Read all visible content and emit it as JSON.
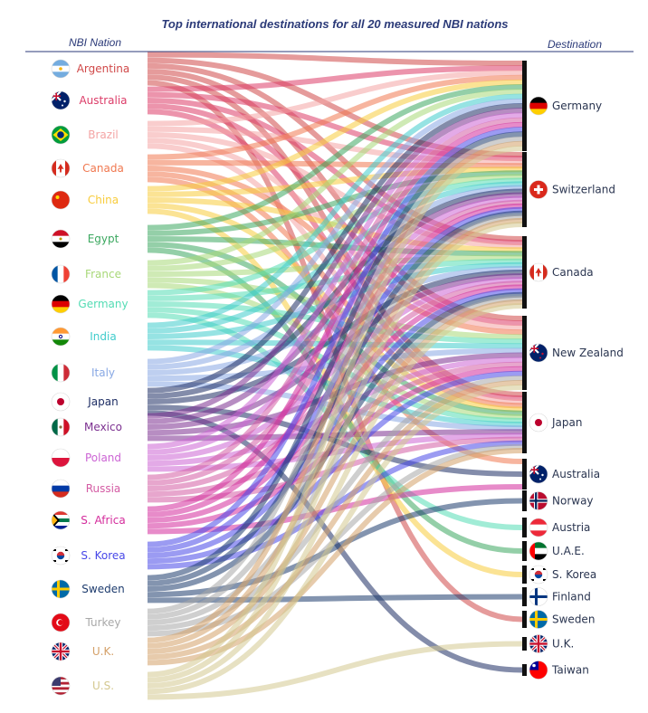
{
  "chart_data": {
    "type": "sankey",
    "title": "Top international destinations for all 20 measured NBI nations",
    "left_header": "NBI Nation",
    "right_header": "Destination",
    "sources": [
      {
        "name": "Argentina",
        "color": "#d04848",
        "flag": "argentina-flag"
      },
      {
        "name": "Australia",
        "color": "#dc3c68",
        "flag": "australia-flag"
      },
      {
        "name": "Brazil",
        "color": "#f4a4a4",
        "flag": "brazil-flag"
      },
      {
        "name": "Canada",
        "color": "#f07850",
        "flag": "canada-flag"
      },
      {
        "name": "China",
        "color": "#f8cc3c",
        "flag": "china-flag"
      },
      {
        "name": "Egypt",
        "color": "#3ca860",
        "flag": "egypt-flag"
      },
      {
        "name": "France",
        "color": "#a8d878",
        "flag": "france-flag"
      },
      {
        "name": "Germany",
        "color": "#54dcb4",
        "flag": "germany-flag"
      },
      {
        "name": "India",
        "color": "#40cccc",
        "flag": "india-flag"
      },
      {
        "name": "Italy",
        "color": "#88a8e4",
        "flag": "italy-flag"
      },
      {
        "name": "Japan",
        "color": "#1e2e64",
        "flag": "japan-flag"
      },
      {
        "name": "Mexico",
        "color": "#7c3090",
        "flag": "mexico-flag"
      },
      {
        "name": "Poland",
        "color": "#cc64d4",
        "flag": "poland-flag"
      },
      {
        "name": "Russia",
        "color": "#d45ca4",
        "flag": "russia-flag"
      },
      {
        "name": "S. Africa",
        "color": "#d42c9c",
        "flag": "s-africa-flag"
      },
      {
        "name": "S. Korea",
        "color": "#4848e8",
        "flag": "s-korea-flag"
      },
      {
        "name": "Sweden",
        "color": "#1e3c6e",
        "flag": "sweden-flag"
      },
      {
        "name": "Turkey",
        "color": "#a8a8a8",
        "flag": "turkey-flag"
      },
      {
        "name": "U.K.",
        "color": "#d4a068",
        "flag": "uk-flag"
      },
      {
        "name": "U.S.",
        "color": "#d4c890",
        "flag": "us-flag"
      }
    ],
    "destinations": [
      {
        "name": "Germany",
        "flag": "germany-flag"
      },
      {
        "name": "Switzerland",
        "flag": "switzerland-flag"
      },
      {
        "name": "Canada",
        "flag": "canada-flag"
      },
      {
        "name": "New Zealand",
        "flag": "new-zealand-flag"
      },
      {
        "name": "Japan",
        "flag": "japan-flag"
      },
      {
        "name": "Australia",
        "flag": "australia-flag"
      },
      {
        "name": "Norway",
        "flag": "norway-flag"
      },
      {
        "name": "Austria",
        "flag": "austria-flag"
      },
      {
        "name": "U.A.E.",
        "flag": "uae-flag"
      },
      {
        "name": "S. Korea",
        "flag": "s-korea-flag"
      },
      {
        "name": "Finland",
        "flag": "finland-flag"
      },
      {
        "name": "Sweden",
        "flag": "sweden-flag"
      },
      {
        "name": "U.K.",
        "flag": "uk-flag"
      },
      {
        "name": "Taiwan",
        "flag": "taiwan-flag"
      }
    ],
    "flows": [
      {
        "from": "Argentina",
        "to": [
          "Germany",
          "Switzerland",
          "Canada",
          "New Zealand",
          "Japan",
          "Sweden"
        ]
      },
      {
        "from": "Australia",
        "to": [
          "Germany",
          "Switzerland",
          "Canada",
          "New Zealand",
          "Japan"
        ]
      },
      {
        "from": "Brazil",
        "to": [
          "Germany",
          "Switzerland",
          "Canada",
          "New Zealand",
          "Japan"
        ]
      },
      {
        "from": "Canada",
        "to": [
          "Germany",
          "Switzerland",
          "New Zealand",
          "Japan",
          "Australia"
        ]
      },
      {
        "from": "China",
        "to": [
          "Germany",
          "Switzerland",
          "Canada",
          "Japan",
          "S. Korea"
        ]
      },
      {
        "from": "Egypt",
        "to": [
          "Germany",
          "Switzerland",
          "Canada",
          "Japan",
          "U.A.E."
        ]
      },
      {
        "from": "France",
        "to": [
          "Germany",
          "Switzerland",
          "Canada",
          "New Zealand",
          "Japan"
        ]
      },
      {
        "from": "Germany",
        "to": [
          "Switzerland",
          "Canada",
          "New Zealand",
          "Japan",
          "Austria"
        ]
      },
      {
        "from": "India",
        "to": [
          "Germany",
          "Switzerland",
          "Canada",
          "New Zealand",
          "Japan"
        ]
      },
      {
        "from": "Italy",
        "to": [
          "Germany",
          "Switzerland",
          "Canada",
          "New Zealand",
          "Japan"
        ]
      },
      {
        "from": "Japan",
        "to": [
          "Germany",
          "Switzerland",
          "Canada",
          "Australia",
          "Taiwan"
        ]
      },
      {
        "from": "Mexico",
        "to": [
          "Germany",
          "Switzerland",
          "Canada",
          "New Zealand",
          "Japan"
        ]
      },
      {
        "from": "Poland",
        "to": [
          "Germany",
          "Switzerland",
          "Canada",
          "New Zealand",
          "Japan"
        ]
      },
      {
        "from": "Russia",
        "to": [
          "Germany",
          "Switzerland",
          "Canada",
          "New Zealand",
          "Japan"
        ]
      },
      {
        "from": "S. Africa",
        "to": [
          "Germany",
          "Switzerland",
          "Canada",
          "New Zealand",
          "Australia"
        ]
      },
      {
        "from": "S. Korea",
        "to": [
          "Germany",
          "Switzerland",
          "Canada",
          "New Zealand",
          "Japan"
        ]
      },
      {
        "from": "Sweden",
        "to": [
          "Germany",
          "Switzerland",
          "Canada",
          "Norway",
          "Finland"
        ]
      },
      {
        "from": "Turkey",
        "to": [
          "Germany",
          "Switzerland",
          "Canada",
          "New Zealand",
          "Japan"
        ]
      },
      {
        "from": "U.K.",
        "to": [
          "Germany",
          "Switzerland",
          "Canada",
          "New Zealand",
          "Japan"
        ]
      },
      {
        "from": "U.S.",
        "to": [
          "Germany",
          "Switzerland",
          "Canada",
          "New Zealand",
          "U.K."
        ]
      }
    ]
  }
}
